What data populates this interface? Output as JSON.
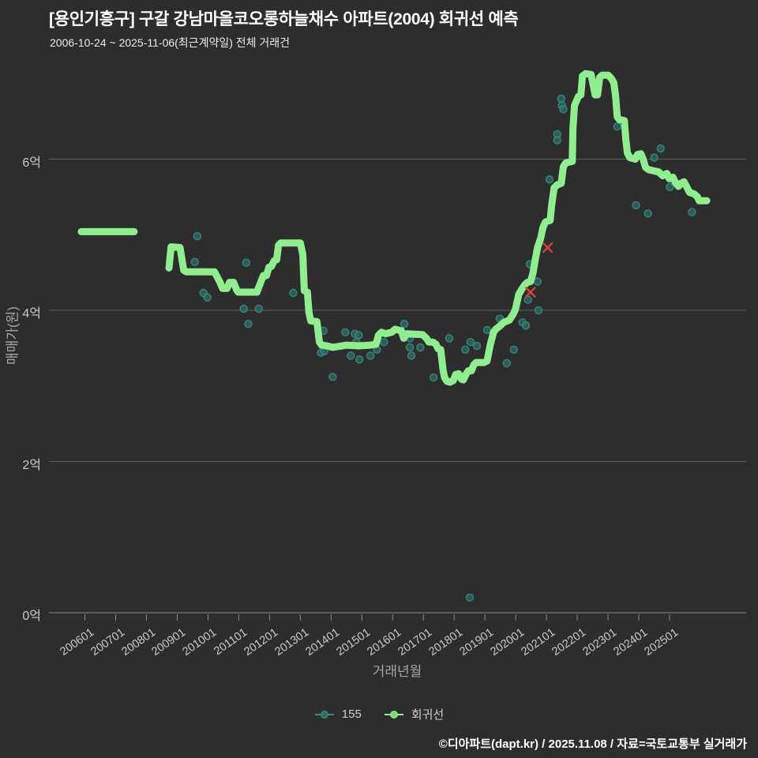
{
  "header": {
    "title": "[용인기흥구] 구갈 강남마을코오롱하늘채수 아파트(2004) 회귀선 예측",
    "subtitle": "2006-10-24 ~ 2025-11-06(최근계약일) 전체 거래건"
  },
  "footer": {
    "credit": "©디아파트(dapt.kr) / 2025.11.08 / 자료=국토교통부 실거래가"
  },
  "legend": {
    "items": [
      {
        "label": "155",
        "type": "scatter",
        "color": "#3a8f86"
      },
      {
        "label": "회귀선",
        "type": "line",
        "color": "#90ee90"
      }
    ]
  },
  "chart_data": {
    "type": "line",
    "title": "[용인기흥구] 구갈 강남마을코오롱하늘채수 아파트(2004) 회귀선 예측",
    "x_axis": {
      "title": "거래년월",
      "tick_labels": [
        "200601",
        "200701",
        "200801",
        "200901",
        "201001",
        "201101",
        "201201",
        "201301",
        "201401",
        "201501",
        "201601",
        "201701",
        "201801",
        "201901",
        "202001",
        "202101",
        "202201",
        "202301",
        "202401",
        "202501"
      ],
      "tick_values": [
        2006,
        2007,
        2008,
        2009,
        2010,
        2011,
        2012,
        2013,
        2014,
        2015,
        2016,
        2017,
        2018,
        2019,
        2020,
        2021,
        2022,
        2023,
        2024,
        2025
      ],
      "range": [
        2004.83,
        2027.49
      ]
    },
    "y_axis": {
      "title": "매매가(원)",
      "ticks": [
        {
          "label": "0억",
          "value": 0
        },
        {
          "label": "2억",
          "value": 2
        },
        {
          "label": "4억",
          "value": 4
        },
        {
          "label": "6억",
          "value": 6
        }
      ],
      "range": [
        0,
        7.217
      ],
      "unit": "억"
    },
    "grid": true,
    "legend_position": "bottom-center",
    "series": [
      {
        "name": "155",
        "type": "scatter",
        "fill_color": "#2c6b64",
        "ring_color": "#3a8f86",
        "points": [
          [
            2009.57,
            4.64
          ],
          [
            2009.65,
            4.98
          ],
          [
            2009.85,
            4.23
          ],
          [
            2009.98,
            4.17
          ],
          [
            2011.16,
            4.02
          ],
          [
            2011.24,
            4.63
          ],
          [
            2011.31,
            3.82
          ],
          [
            2011.65,
            4.02
          ],
          [
            2012.77,
            4.23
          ],
          [
            2013.67,
            3.44
          ],
          [
            2013.75,
            3.73
          ],
          [
            2013.78,
            3.46
          ],
          [
            2014.05,
            3.12
          ],
          [
            2014.46,
            3.71
          ],
          [
            2014.64,
            3.4
          ],
          [
            2014.77,
            3.69
          ],
          [
            2014.82,
            3.58
          ],
          [
            2014.9,
            3.67
          ],
          [
            2014.92,
            3.35
          ],
          [
            2015.28,
            3.4
          ],
          [
            2015.49,
            3.48
          ],
          [
            2015.72,
            3.58
          ],
          [
            2016.38,
            3.82
          ],
          [
            2016.56,
            3.63
          ],
          [
            2016.56,
            3.51
          ],
          [
            2016.61,
            3.4
          ],
          [
            2016.9,
            3.51
          ],
          [
            2017.33,
            3.11
          ],
          [
            2017.84,
            3.63
          ],
          [
            2018.36,
            3.48
          ],
          [
            2018.51,
            0.2
          ],
          [
            2018.53,
            3.58
          ],
          [
            2018.74,
            3.53
          ],
          [
            2019.07,
            3.74
          ],
          [
            2019.48,
            3.89
          ],
          [
            2019.71,
            3.3
          ],
          [
            2019.94,
            3.48
          ],
          [
            2020.22,
            3.84
          ],
          [
            2020.33,
            3.8
          ],
          [
            2020.4,
            4.14
          ],
          [
            2020.46,
            4.61
          ],
          [
            2020.71,
            4.38
          ],
          [
            2020.74,
            4.0
          ],
          [
            2021.1,
            5.73
          ],
          [
            2021.35,
            6.33
          ],
          [
            2021.35,
            6.25
          ],
          [
            2021.48,
            6.8
          ],
          [
            2021.5,
            6.71
          ],
          [
            2021.55,
            6.66
          ],
          [
            2023.3,
            6.43
          ],
          [
            2023.91,
            5.39
          ],
          [
            2024.3,
            5.28
          ],
          [
            2024.5,
            6.02
          ],
          [
            2024.71,
            6.14
          ],
          [
            2025.01,
            5.63
          ],
          [
            2025.73,
            5.3
          ]
        ]
      },
      {
        "name": "회귀선",
        "type": "line",
        "color": "#90ee90",
        "width": 9,
        "segments": [
          [
            [
              2005.88,
              5.04
            ],
            [
              2007.6,
              5.04
            ]
          ],
          [
            [
              2008.73,
              4.56
            ],
            [
              2008.8,
              4.84
            ],
            [
              2009.09,
              4.83
            ],
            [
              2009.21,
              4.53
            ],
            [
              2009.29,
              4.51
            ],
            [
              2010.21,
              4.51
            ],
            [
              2010.39,
              4.37
            ],
            [
              2010.47,
              4.29
            ],
            [
              2010.62,
              4.29
            ],
            [
              2010.7,
              4.37
            ],
            [
              2010.83,
              4.37
            ],
            [
              2010.93,
              4.27
            ],
            [
              2010.98,
              4.24
            ],
            [
              2011.59,
              4.24
            ],
            [
              2011.72,
              4.38
            ],
            [
              2011.8,
              4.46
            ],
            [
              2011.9,
              4.46
            ],
            [
              2011.98,
              4.57
            ],
            [
              2012.06,
              4.58
            ],
            [
              2012.16,
              4.66
            ],
            [
              2012.23,
              4.67
            ],
            [
              2012.29,
              4.86
            ],
            [
              2012.36,
              4.89
            ],
            [
              2013.0,
              4.89
            ],
            [
              2013.08,
              4.74
            ],
            [
              2013.13,
              4.26
            ],
            [
              2013.23,
              4.24
            ],
            [
              2013.28,
              3.97
            ],
            [
              2013.34,
              3.86
            ],
            [
              2013.54,
              3.85
            ],
            [
              2013.62,
              3.58
            ],
            [
              2013.69,
              3.54
            ],
            [
              2013.85,
              3.53
            ],
            [
              2014.05,
              3.51
            ],
            [
              2014.51,
              3.54
            ],
            [
              2014.9,
              3.53
            ],
            [
              2015.28,
              3.54
            ],
            [
              2015.46,
              3.55
            ],
            [
              2015.54,
              3.67
            ],
            [
              2015.64,
              3.71
            ],
            [
              2015.77,
              3.69
            ],
            [
              2015.97,
              3.71
            ],
            [
              2016.08,
              3.75
            ],
            [
              2016.28,
              3.73
            ],
            [
              2016.36,
              3.63
            ],
            [
              2016.46,
              3.69
            ],
            [
              2016.97,
              3.68
            ],
            [
              2017.1,
              3.63
            ],
            [
              2017.18,
              3.58
            ],
            [
              2017.31,
              3.58
            ],
            [
              2017.41,
              3.55
            ],
            [
              2017.48,
              3.49
            ],
            [
              2017.56,
              3.48
            ],
            [
              2017.64,
              3.21
            ],
            [
              2017.69,
              3.11
            ],
            [
              2017.77,
              3.06
            ],
            [
              2017.87,
              3.05
            ],
            [
              2017.97,
              3.07
            ],
            [
              2018.05,
              3.15
            ],
            [
              2018.15,
              3.16
            ],
            [
              2018.23,
              3.09
            ],
            [
              2018.3,
              3.08
            ],
            [
              2018.38,
              3.15
            ],
            [
              2018.46,
              3.2
            ],
            [
              2018.56,
              3.2
            ],
            [
              2018.64,
              3.28
            ],
            [
              2018.71,
              3.31
            ],
            [
              2018.97,
              3.31
            ],
            [
              2019.07,
              3.33
            ],
            [
              2019.17,
              3.54
            ],
            [
              2019.28,
              3.71
            ],
            [
              2019.35,
              3.75
            ],
            [
              2019.48,
              3.79
            ],
            [
              2019.61,
              3.84
            ],
            [
              2019.79,
              3.87
            ],
            [
              2019.92,
              3.95
            ],
            [
              2019.99,
              4.01
            ],
            [
              2020.1,
              4.21
            ],
            [
              2020.2,
              4.28
            ],
            [
              2020.3,
              4.34
            ],
            [
              2020.38,
              4.37
            ],
            [
              2020.48,
              4.38
            ],
            [
              2020.56,
              4.49
            ],
            [
              2020.63,
              4.66
            ],
            [
              2020.71,
              4.83
            ],
            [
              2020.81,
              4.95
            ],
            [
              2020.89,
              5.1
            ],
            [
              2020.97,
              5.17
            ],
            [
              2021.12,
              5.19
            ],
            [
              2021.17,
              5.39
            ],
            [
              2021.25,
              5.62
            ],
            [
              2021.35,
              5.66
            ],
            [
              2021.48,
              5.68
            ],
            [
              2021.55,
              5.9
            ],
            [
              2021.63,
              5.95
            ],
            [
              2021.84,
              5.97
            ],
            [
              2021.86,
              6.4
            ],
            [
              2021.91,
              6.71
            ],
            [
              2022.04,
              6.83
            ],
            [
              2022.12,
              6.85
            ],
            [
              2022.17,
              7.1
            ],
            [
              2022.27,
              7.13
            ],
            [
              2022.45,
              7.12
            ],
            [
              2022.53,
              6.96
            ],
            [
              2022.58,
              6.85
            ],
            [
              2022.66,
              6.85
            ],
            [
              2022.73,
              7.08
            ],
            [
              2022.81,
              7.11
            ],
            [
              2023.01,
              7.11
            ],
            [
              2023.12,
              7.06
            ],
            [
              2023.19,
              7.01
            ],
            [
              2023.25,
              6.82
            ],
            [
              2023.3,
              6.56
            ],
            [
              2023.37,
              6.52
            ],
            [
              2023.53,
              6.51
            ],
            [
              2023.58,
              6.26
            ],
            [
              2023.63,
              6.08
            ],
            [
              2023.71,
              6.02
            ],
            [
              2023.89,
              6.0
            ],
            [
              2023.96,
              6.06
            ],
            [
              2024.07,
              6.07
            ],
            [
              2024.14,
              6.0
            ],
            [
              2024.22,
              5.89
            ],
            [
              2024.32,
              5.86
            ],
            [
              2024.65,
              5.83
            ],
            [
              2024.78,
              5.78
            ],
            [
              2024.91,
              5.81
            ],
            [
              2024.99,
              5.74
            ],
            [
              2025.11,
              5.76
            ],
            [
              2025.19,
              5.69
            ],
            [
              2025.29,
              5.64
            ],
            [
              2025.37,
              5.68
            ],
            [
              2025.47,
              5.7
            ],
            [
              2025.55,
              5.64
            ],
            [
              2025.65,
              5.56
            ],
            [
              2025.8,
              5.54
            ],
            [
              2025.91,
              5.5
            ],
            [
              2025.96,
              5.45
            ],
            [
              2026.21,
              5.45
            ]
          ]
        ]
      },
      {
        "name": "cancelled-marks",
        "type": "x-marker",
        "color": "#d64040",
        "points": [
          [
            2020.48,
            4.24
          ],
          [
            2021.04,
            4.83
          ]
        ]
      }
    ]
  }
}
